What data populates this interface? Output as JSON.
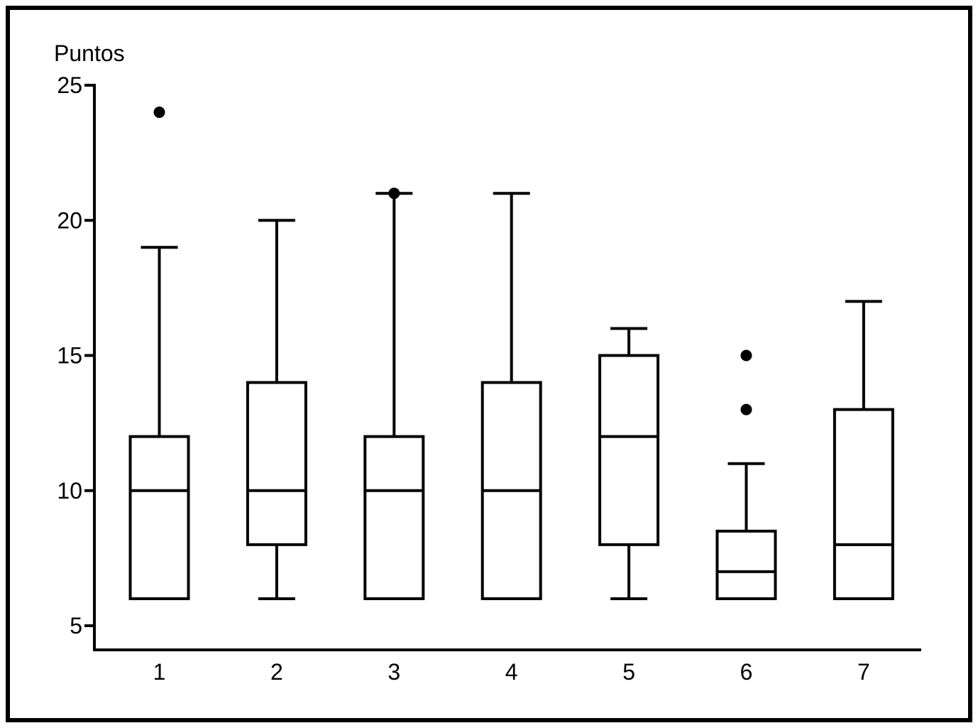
{
  "figure": {
    "background": "#ffffff",
    "border_color": "#000000"
  },
  "chart_data": {
    "type": "boxplot",
    "title": "Puntos",
    "ylabel": "Puntos",
    "xlabel": "",
    "categories": [
      "1",
      "2",
      "3",
      "4",
      "5",
      "6",
      "7"
    ],
    "y_ticks": [
      25,
      20,
      15,
      10,
      5
    ],
    "ylim": [
      5,
      25
    ],
    "grid": false,
    "legend": "none",
    "series": [
      {
        "category": "1",
        "whisker_low": 6,
        "q1": 6,
        "median": 10,
        "q3": 12,
        "whisker_high": 19,
        "outliers": [
          24
        ]
      },
      {
        "category": "2",
        "whisker_low": 6,
        "q1": 8,
        "median": 10,
        "q3": 14,
        "whisker_high": 20,
        "outliers": []
      },
      {
        "category": "3",
        "whisker_low": 6,
        "q1": 6,
        "median": 10,
        "q3": 12,
        "whisker_high": 21,
        "outliers": [
          21
        ]
      },
      {
        "category": "4",
        "whisker_low": 6,
        "q1": 6,
        "median": 10,
        "q3": 14,
        "whisker_high": 21,
        "outliers": []
      },
      {
        "category": "5",
        "whisker_low": 6,
        "q1": 8,
        "median": 12,
        "q3": 15,
        "whisker_high": 16,
        "outliers": []
      },
      {
        "category": "6",
        "whisker_low": 6,
        "q1": 6,
        "median": 7,
        "q3": 8.5,
        "whisker_high": 11,
        "outliers": [
          13,
          15
        ]
      },
      {
        "category": "7",
        "whisker_low": 6,
        "q1": 6,
        "median": 8,
        "q3": 13,
        "whisker_high": 17,
        "outliers": []
      }
    ],
    "colors": {
      "stroke": "#000000",
      "box_fill": "#ffffff",
      "outlier_fill": "#000000",
      "background": "#ffffff"
    }
  }
}
